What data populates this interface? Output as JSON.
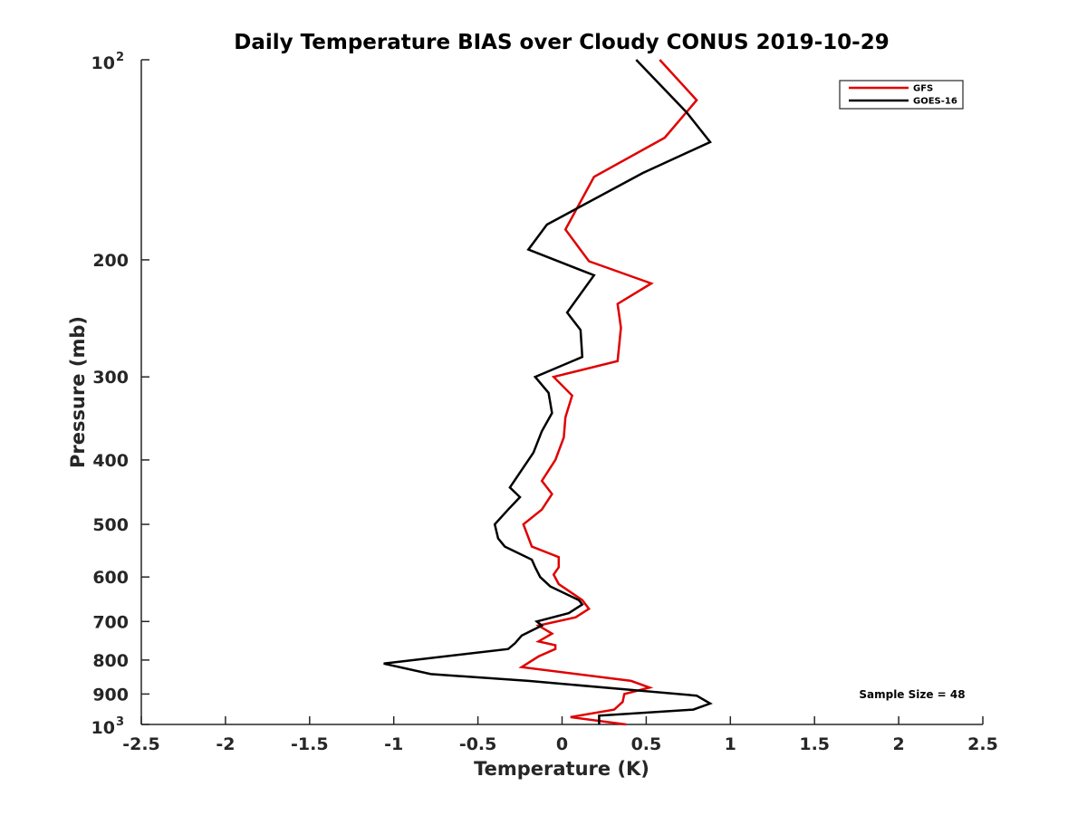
{
  "chart_data": {
    "type": "line",
    "title": "Daily Temperature BIAS over Cloudy CONUS 2019-10-29",
    "xlabel": "Temperature (K)",
    "ylabel": "Pressure (mb)",
    "xlim": [
      -2.5,
      2.5
    ],
    "ylim": [
      100,
      1000
    ],
    "y_scale": "log",
    "y_reversed": true,
    "x_ticks": [
      "-2.5",
      "-2",
      "-1.5",
      "-1",
      "-0.5",
      "0",
      "0.5",
      "1",
      "1.5",
      "2",
      "2.5"
    ],
    "y_ticks": [
      {
        "value": 100,
        "base": "10",
        "exp": "2"
      },
      {
        "value": 200,
        "label": "200"
      },
      {
        "value": 300,
        "label": "300"
      },
      {
        "value": 400,
        "label": "400"
      },
      {
        "value": 500,
        "label": "500"
      },
      {
        "value": 600,
        "label": "600"
      },
      {
        "value": 700,
        "label": "700"
      },
      {
        "value": 800,
        "label": "800"
      },
      {
        "value": 900,
        "label": "900"
      },
      {
        "value": 1000,
        "base": "10",
        "exp": "3"
      }
    ],
    "grid": false,
    "legend": "top-right",
    "annotation": "Sample Size = 48",
    "series": [
      {
        "name": "GFS",
        "color": "#e00000",
        "x": [
          0.58,
          0.8,
          0.61,
          0.19,
          0.02,
          0.16,
          0.53,
          0.33,
          0.35,
          0.33,
          -0.05,
          0.06,
          0.02,
          0.01,
          -0.04,
          -0.12,
          -0.06,
          -0.12,
          -0.23,
          -0.18,
          -0.02,
          -0.02,
          -0.05,
          -0.02,
          0.12,
          0.16,
          0.08,
          -0.14,
          -0.06,
          -0.14,
          -0.04,
          -0.04,
          -0.14,
          -0.24,
          0.41,
          0.52,
          0.37,
          0.36,
          0.31,
          0.05,
          0.38
        ],
        "y": [
          100,
          115,
          131,
          150,
          180,
          201,
          217,
          233,
          253,
          284,
          300,
          320,
          345,
          370,
          400,
          430,
          450,
          475,
          500,
          540,
          560,
          580,
          595,
          615,
          650,
          670,
          690,
          710,
          730,
          750,
          760,
          770,
          790,
          820,
          860,
          880,
          900,
          925,
          950,
          975,
          1000
        ]
      },
      {
        "name": "GOES-16",
        "color": "#000000",
        "x": [
          0.44,
          0.74,
          0.88,
          0.48,
          -0.09,
          -0.2,
          0.19,
          0.03,
          0.11,
          0.12,
          -0.16,
          -0.08,
          -0.06,
          -0.12,
          -0.17,
          -0.31,
          -0.25,
          -0.32,
          -0.4,
          -0.38,
          -0.34,
          -0.18,
          -0.16,
          -0.13,
          -0.07,
          0.1,
          0.12,
          0.04,
          -0.15,
          -0.12,
          -0.24,
          -0.28,
          -0.32,
          -1.06,
          -0.78,
          -0.2,
          0.8,
          0.88,
          0.78,
          0.22,
          0.22
        ],
        "y": [
          100,
          120,
          133,
          148,
          177,
          193,
          211,
          240,
          255,
          280,
          300,
          317,
          340,
          362,
          390,
          440,
          455,
          475,
          500,
          525,
          540,
          565,
          580,
          600,
          620,
          650,
          660,
          680,
          700,
          710,
          735,
          755,
          770,
          810,
          840,
          860,
          905,
          930,
          950,
          970,
          1000
        ]
      }
    ]
  }
}
